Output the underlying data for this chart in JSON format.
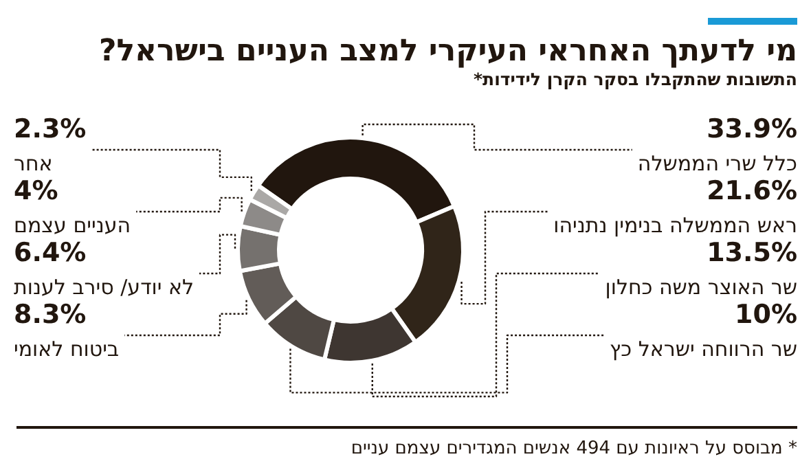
{
  "chart_data": {
    "type": "donut",
    "title": "מי לדעתך האחראי העיקרי למצב העניים בישראל?",
    "subtitle": "התשובות שהתקבלו בסקר הקרן לידידות*",
    "categories": [
      "כלל שרי הממשלה",
      "ראש הממשלה בנימין נתניהו",
      "שר האוצר משה כחלון",
      "שר הרווחה ישראל כץ",
      "ביטוח לאומי",
      "לא יודע/ סירב לענות",
      "העניים עצמם",
      "אחר"
    ],
    "values": [
      33.9,
      21.6,
      13.5,
      10,
      8.3,
      6.4,
      4,
      2.3
    ],
    "colors": [
      "#21160e",
      "#302519",
      "#3e3631",
      "#4f4843",
      "#625c58",
      "#75716e",
      "#8d8a88",
      "#aaa8a6"
    ],
    "value_labels": [
      "33.9%",
      "21.6%",
      "13.5%",
      "10%",
      "8.3%",
      "6.4%",
      "4%",
      "2.3%"
    ],
    "annotations": [
      "* מבוסס על ראיונות עם 494 אנשים המגדירים עצמם עניים"
    ]
  }
}
